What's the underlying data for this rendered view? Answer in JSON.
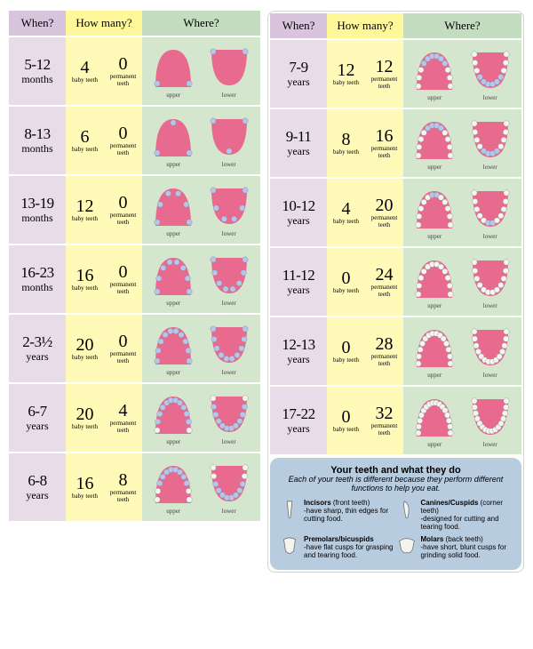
{
  "colors": {
    "when_header": "#d9c4dd",
    "howmany_header": "#fef89a",
    "where_header": "#c4dcc0",
    "when_cell": "#e8dce9",
    "howmany_cell": "#fffab8",
    "where_cell": "#d4e6cd",
    "mouth_fill": "#e86a8f",
    "tooth_fill": "#b4c6ed",
    "perm_tooth_fill": "#f5f5f0",
    "info_bg": "#b8cce0",
    "text": "#2a2a2a"
  },
  "headers": {
    "when": "When?",
    "howmany": "How many?",
    "where": "Where?"
  },
  "count_labels": {
    "baby": "baby\nteeth",
    "perm": "permanent\nteeth"
  },
  "mouth_labels": {
    "upper": "upper",
    "lower": "lower"
  },
  "left_rows": [
    {
      "range": "5-12",
      "unit": "months",
      "baby": 4,
      "perm": 0
    },
    {
      "range": "8-13",
      "unit": "months",
      "baby": 6,
      "perm": 0
    },
    {
      "range": "13-19",
      "unit": "months",
      "baby": 12,
      "perm": 0
    },
    {
      "range": "16-23",
      "unit": "months",
      "baby": 16,
      "perm": 0
    },
    {
      "range": "2-3½",
      "unit": "years",
      "baby": 20,
      "perm": 0
    },
    {
      "range": "6-7",
      "unit": "years",
      "baby": 20,
      "perm": 4
    },
    {
      "range": "6-8",
      "unit": "years",
      "baby": 16,
      "perm": 8
    }
  ],
  "right_rows": [
    {
      "range": "7-9",
      "unit": "years",
      "baby": 12,
      "perm": 12
    },
    {
      "range": "9-11",
      "unit": "years",
      "baby": 8,
      "perm": 16
    },
    {
      "range": "10-12",
      "unit": "years",
      "baby": 4,
      "perm": 20
    },
    {
      "range": "11-12",
      "unit": "years",
      "baby": 0,
      "perm": 24
    },
    {
      "range": "12-13",
      "unit": "years",
      "baby": 0,
      "perm": 28
    },
    {
      "range": "17-22",
      "unit": "years",
      "baby": 0,
      "perm": 32
    }
  ],
  "info": {
    "title": "Your teeth and what they do",
    "sub": "Each of your teeth is different because they perform different functions to help you eat.",
    "items": [
      {
        "name": "Incisors",
        "paren": "(front teeth)",
        "desc": "-have sharp, thin edges for cutting food."
      },
      {
        "name": "Canines/Cuspids",
        "paren": "(corner teeth)",
        "desc": "-designed for cutting and tearing food."
      },
      {
        "name": "Premolars/bicuspids",
        "paren": "",
        "desc": "-have flat cusps for grasping and tearing food."
      },
      {
        "name": "Molars",
        "paren": "(back teeth)",
        "desc": "-have short, blunt cusps for grinding solid food."
      }
    ]
  }
}
